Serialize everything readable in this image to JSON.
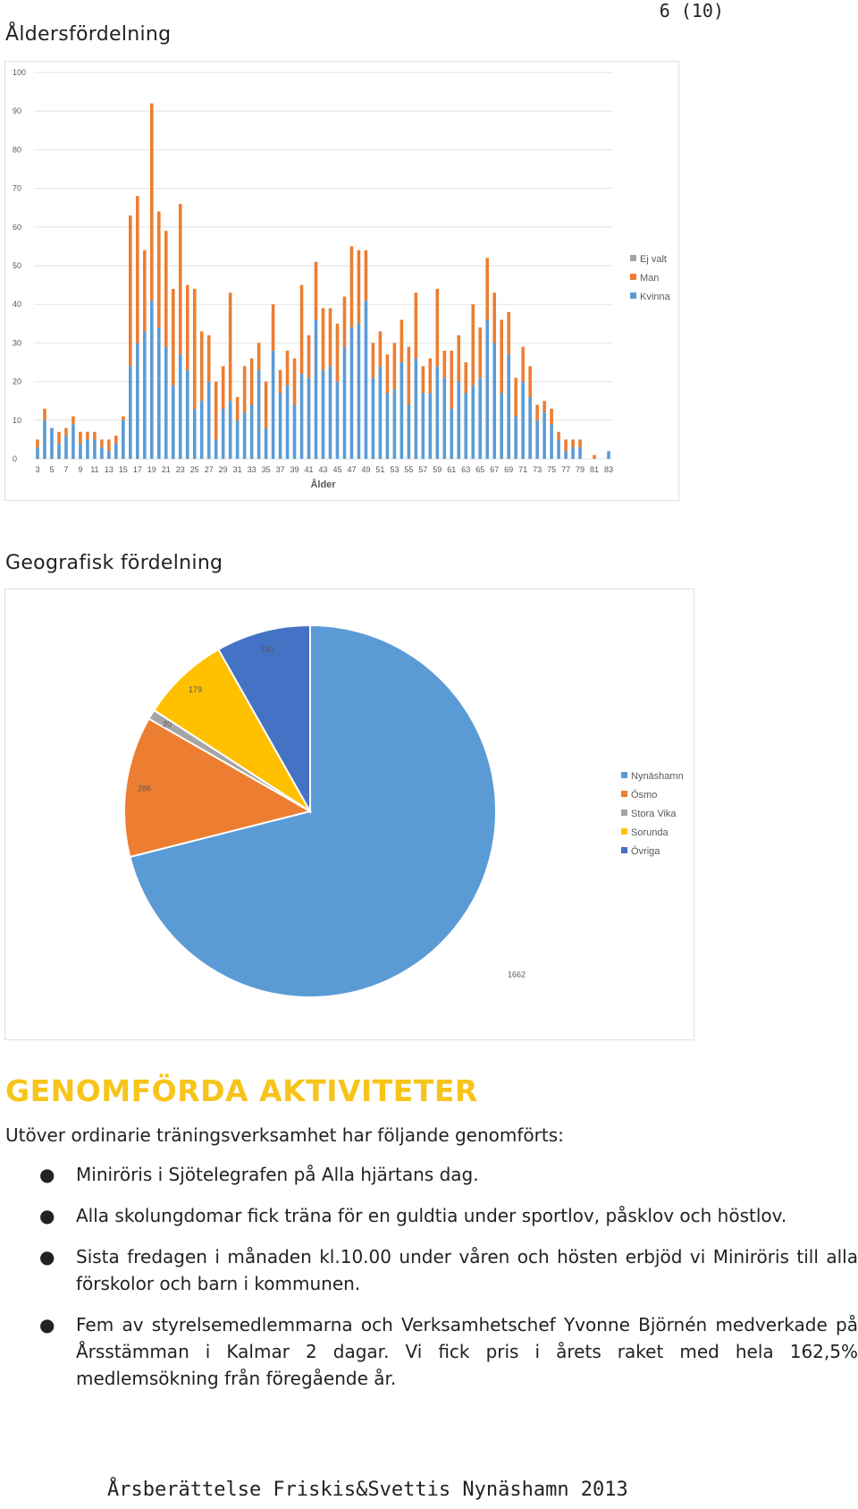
{
  "page_number": "6 (10)",
  "age_section": {
    "title": "Åldersfördelning"
  },
  "geo_section": {
    "title": "Geografisk fördelning"
  },
  "activities": {
    "heading": "GENOMFÖRDA AKTIVITETER",
    "intro": "Utöver ordinarie träningsverksamhet har följande genomförts:",
    "items": [
      "Miniröris i Sjötelegrafen på Alla hjärtans dag.",
      "Alla skolungdomar fick träna för en guldtia under sportlov, påsklov och höstlov.",
      "Sista fredagen i månaden kl.10.00 under våren och hösten erbjöd vi Miniröris till alla förskolor och barn i kommunen.",
      "Fem av styrelsemedlemmarna och Verksamhetschef Yvonne Björnén medverkade på Årsstämman i Kalmar 2 dagar. Vi fick pris i årets raket med hela 162,5% medlemsökning från föregående år."
    ]
  },
  "footer": "Årsberättelse Friskis&Svettis Nynäshamn 2013",
  "chart_data": [
    {
      "type": "bar",
      "stacked": true,
      "xlabel": "Ålder",
      "ylabel": "",
      "ylim": [
        0,
        100
      ],
      "yticks": [
        0,
        10,
        20,
        30,
        40,
        50,
        60,
        70,
        80,
        90,
        100
      ],
      "x": [
        3,
        4,
        5,
        6,
        7,
        8,
        9,
        10,
        11,
        12,
        13,
        14,
        15,
        16,
        17,
        18,
        19,
        20,
        21,
        22,
        23,
        24,
        25,
        26,
        27,
        28,
        29,
        30,
        31,
        32,
        33,
        34,
        35,
        36,
        37,
        38,
        39,
        40,
        41,
        42,
        43,
        44,
        45,
        46,
        47,
        48,
        49,
        50,
        51,
        52,
        53,
        54,
        55,
        56,
        57,
        58,
        59,
        60,
        61,
        62,
        63,
        64,
        65,
        66,
        67,
        68,
        69,
        70,
        71,
        72,
        73,
        74,
        75,
        76,
        77,
        78,
        79,
        80,
        81,
        82,
        83
      ],
      "xtick_labels": [
        "3",
        "5",
        "7",
        "9",
        "11",
        "13",
        "15",
        "17",
        "19",
        "21",
        "23",
        "25",
        "27",
        "29",
        "31",
        "33",
        "35",
        "37",
        "39",
        "41",
        "43",
        "45",
        "47",
        "49",
        "51",
        "53",
        "55",
        "57",
        "59",
        "61",
        "63",
        "65",
        "67",
        "69",
        "71",
        "73",
        "75",
        "77",
        "79",
        "81",
        "83"
      ],
      "grid": true,
      "legend_position": "right",
      "series": [
        {
          "name": "Kvinna",
          "color": "#5b9bd5",
          "values": [
            3,
            10,
            8,
            4,
            6,
            9,
            4,
            5,
            5,
            3,
            2,
            4,
            10,
            24,
            30,
            33,
            41,
            34,
            29,
            19,
            27,
            23,
            13,
            15,
            20,
            5,
            13,
            15,
            10,
            12,
            14,
            23,
            8,
            28,
            17,
            19,
            14,
            22,
            21,
            36,
            23,
            24,
            20,
            29,
            34,
            35,
            41,
            21,
            24,
            17,
            18,
            25,
            14,
            26,
            17,
            17,
            24,
            21,
            13,
            20,
            17,
            19,
            21,
            36,
            30,
            17,
            27,
            11,
            20,
            16,
            10,
            12,
            9,
            5,
            2,
            3,
            3,
            0,
            0,
            0,
            2
          ]
        },
        {
          "name": "Man",
          "color": "#ed7d31",
          "values": [
            2,
            3,
            0,
            3,
            2,
            2,
            3,
            2,
            2,
            2,
            3,
            2,
            1,
            39,
            38,
            21,
            51,
            30,
            30,
            25,
            39,
            22,
            31,
            18,
            12,
            15,
            11,
            28,
            6,
            12,
            12,
            7,
            12,
            12,
            6,
            9,
            12,
            23,
            11,
            15,
            16,
            15,
            15,
            13,
            21,
            19,
            13,
            9,
            9,
            10,
            12,
            11,
            15,
            17,
            7,
            9,
            20,
            7,
            15,
            12,
            8,
            21,
            13,
            16,
            13,
            19,
            11,
            10,
            9,
            8,
            4,
            3,
            4,
            2,
            3,
            2,
            2,
            0,
            1,
            0,
            0
          ]
        },
        {
          "name": "Ej valt",
          "color": "#a5a5a5",
          "values": [
            0,
            0,
            0,
            0,
            0,
            0,
            0,
            0,
            0,
            0,
            0,
            0,
            0,
            0,
            0,
            0,
            0,
            0,
            0,
            0,
            0,
            0,
            0,
            0,
            0,
            0,
            0,
            0,
            0,
            0,
            0,
            0,
            0,
            0,
            0,
            0,
            0,
            0,
            0,
            0,
            0,
            0,
            0,
            0,
            0,
            0,
            0,
            0,
            0,
            0,
            0,
            0,
            0,
            0,
            0,
            0,
            0,
            0,
            0,
            0,
            0,
            0,
            0,
            0,
            0,
            0,
            0,
            0,
            0,
            0,
            0,
            0,
            0,
            0,
            0,
            0,
            0,
            0,
            0,
            0,
            0
          ]
        }
      ],
      "legend_order": [
        "Ej valt",
        "Man",
        "Kvinna"
      ]
    },
    {
      "type": "pie",
      "legend_position": "right",
      "slices": [
        {
          "name": "Nynäshamn",
          "value": 1662,
          "label": "1662",
          "color": "#5b9bd5"
        },
        {
          "name": "Ösmo",
          "value": 286,
          "label": "286",
          "color": "#ed7d31"
        },
        {
          "name": "Stora Vika",
          "value": 20,
          "label": "20",
          "color": "#a5a5a5"
        },
        {
          "name": "Sorunda",
          "value": 179,
          "label": "179",
          "color": "#ffc000"
        },
        {
          "name": "Övriga",
          "value": 192,
          "label": "192",
          "color": "#4472c4"
        }
      ]
    }
  ]
}
